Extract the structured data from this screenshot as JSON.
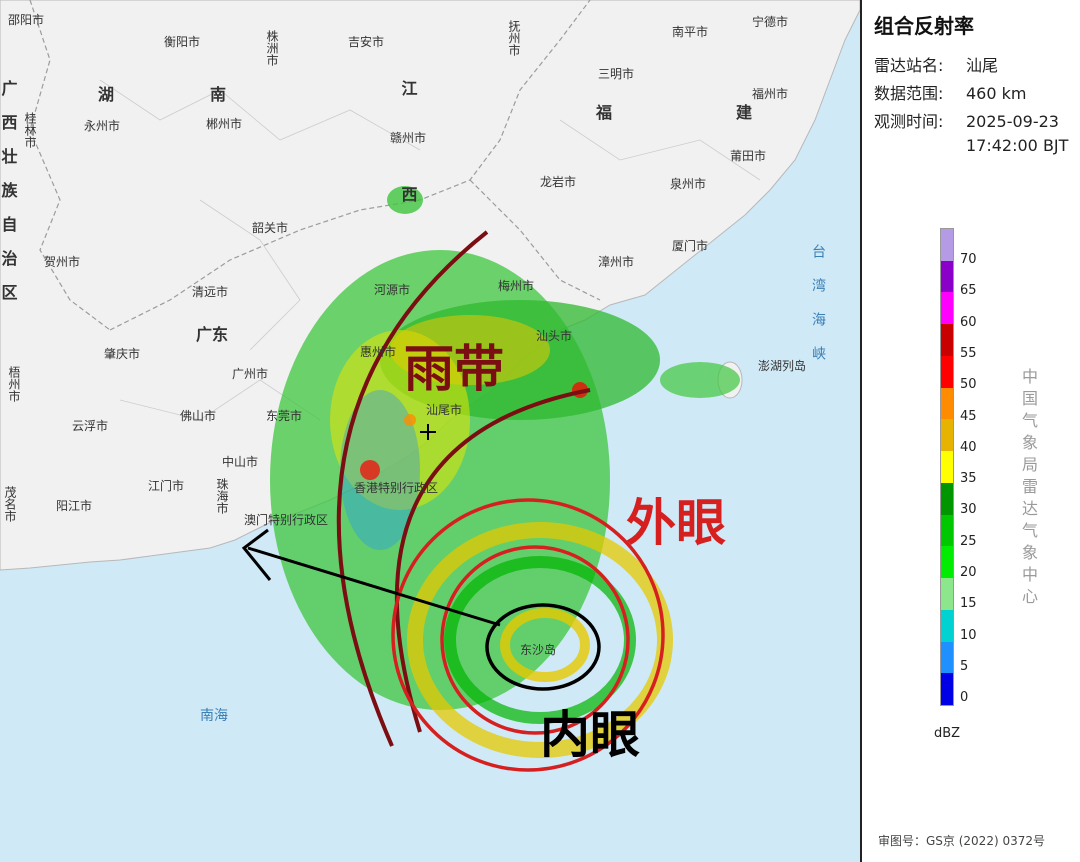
{
  "panel": {
    "title": "组合反射率",
    "station_label": "雷达站名:",
    "station_value": "汕尾",
    "range_label": "数据范围:",
    "range_value": "460 km",
    "time_label": "观测时间:",
    "time_date": "2025-09-23",
    "time_clock": "17:42:00 BJT",
    "unit": "dBZ",
    "vertical_credit": "中国气象局雷达气象中心",
    "footer": "审图号：GS京 (2022) 0372号"
  },
  "scale": {
    "ticks": [
      "70",
      "65",
      "60",
      "55",
      "50",
      "45",
      "40",
      "35",
      "30",
      "25",
      "20",
      "15",
      "10",
      "5",
      "0"
    ],
    "colors": [
      "#b59be6",
      "#8a00c8",
      "#ff00ff",
      "#c80000",
      "#ff0000",
      "#ff8c00",
      "#e6b400",
      "#ffff00",
      "#009600",
      "#00c800",
      "#00ec00",
      "#8ce68c",
      "#00d2d2",
      "#1e90ff",
      "#0000e6"
    ]
  },
  "annotations": {
    "rainband": "雨带",
    "outer_eye": "外眼",
    "inner_eye": "内眼"
  },
  "map_labels": {
    "cities": [
      "邵阳市",
      "衡阳市",
      "株洲市",
      "吉安市",
      "抚州市",
      "南平市",
      "宁德市",
      "永州市",
      "郴州市",
      "三明市",
      "福州市",
      "赣州市",
      "桂林市",
      "贺州市",
      "韶关市",
      "龙岩市",
      "莆田市",
      "泉州市",
      "河源市",
      "漳州市",
      "厦门市",
      "清远市",
      "梅州市",
      "汕头市",
      "肇庆市",
      "广州市",
      "惠州市",
      "梧州市",
      "云浮市",
      "佛山市",
      "东莞市",
      "汕尾市",
      "江门市",
      "中山市",
      "阳江市",
      "茂名市",
      "珠海市",
      "香港特别行政区",
      "澳门特别行政区",
      "澎湖列岛",
      "东沙岛"
    ],
    "provinces": [
      "广西壮族自治区",
      "湖南",
      "江西",
      "福建",
      "广东"
    ],
    "seas": [
      "台湾海峡",
      "南海"
    ]
  }
}
